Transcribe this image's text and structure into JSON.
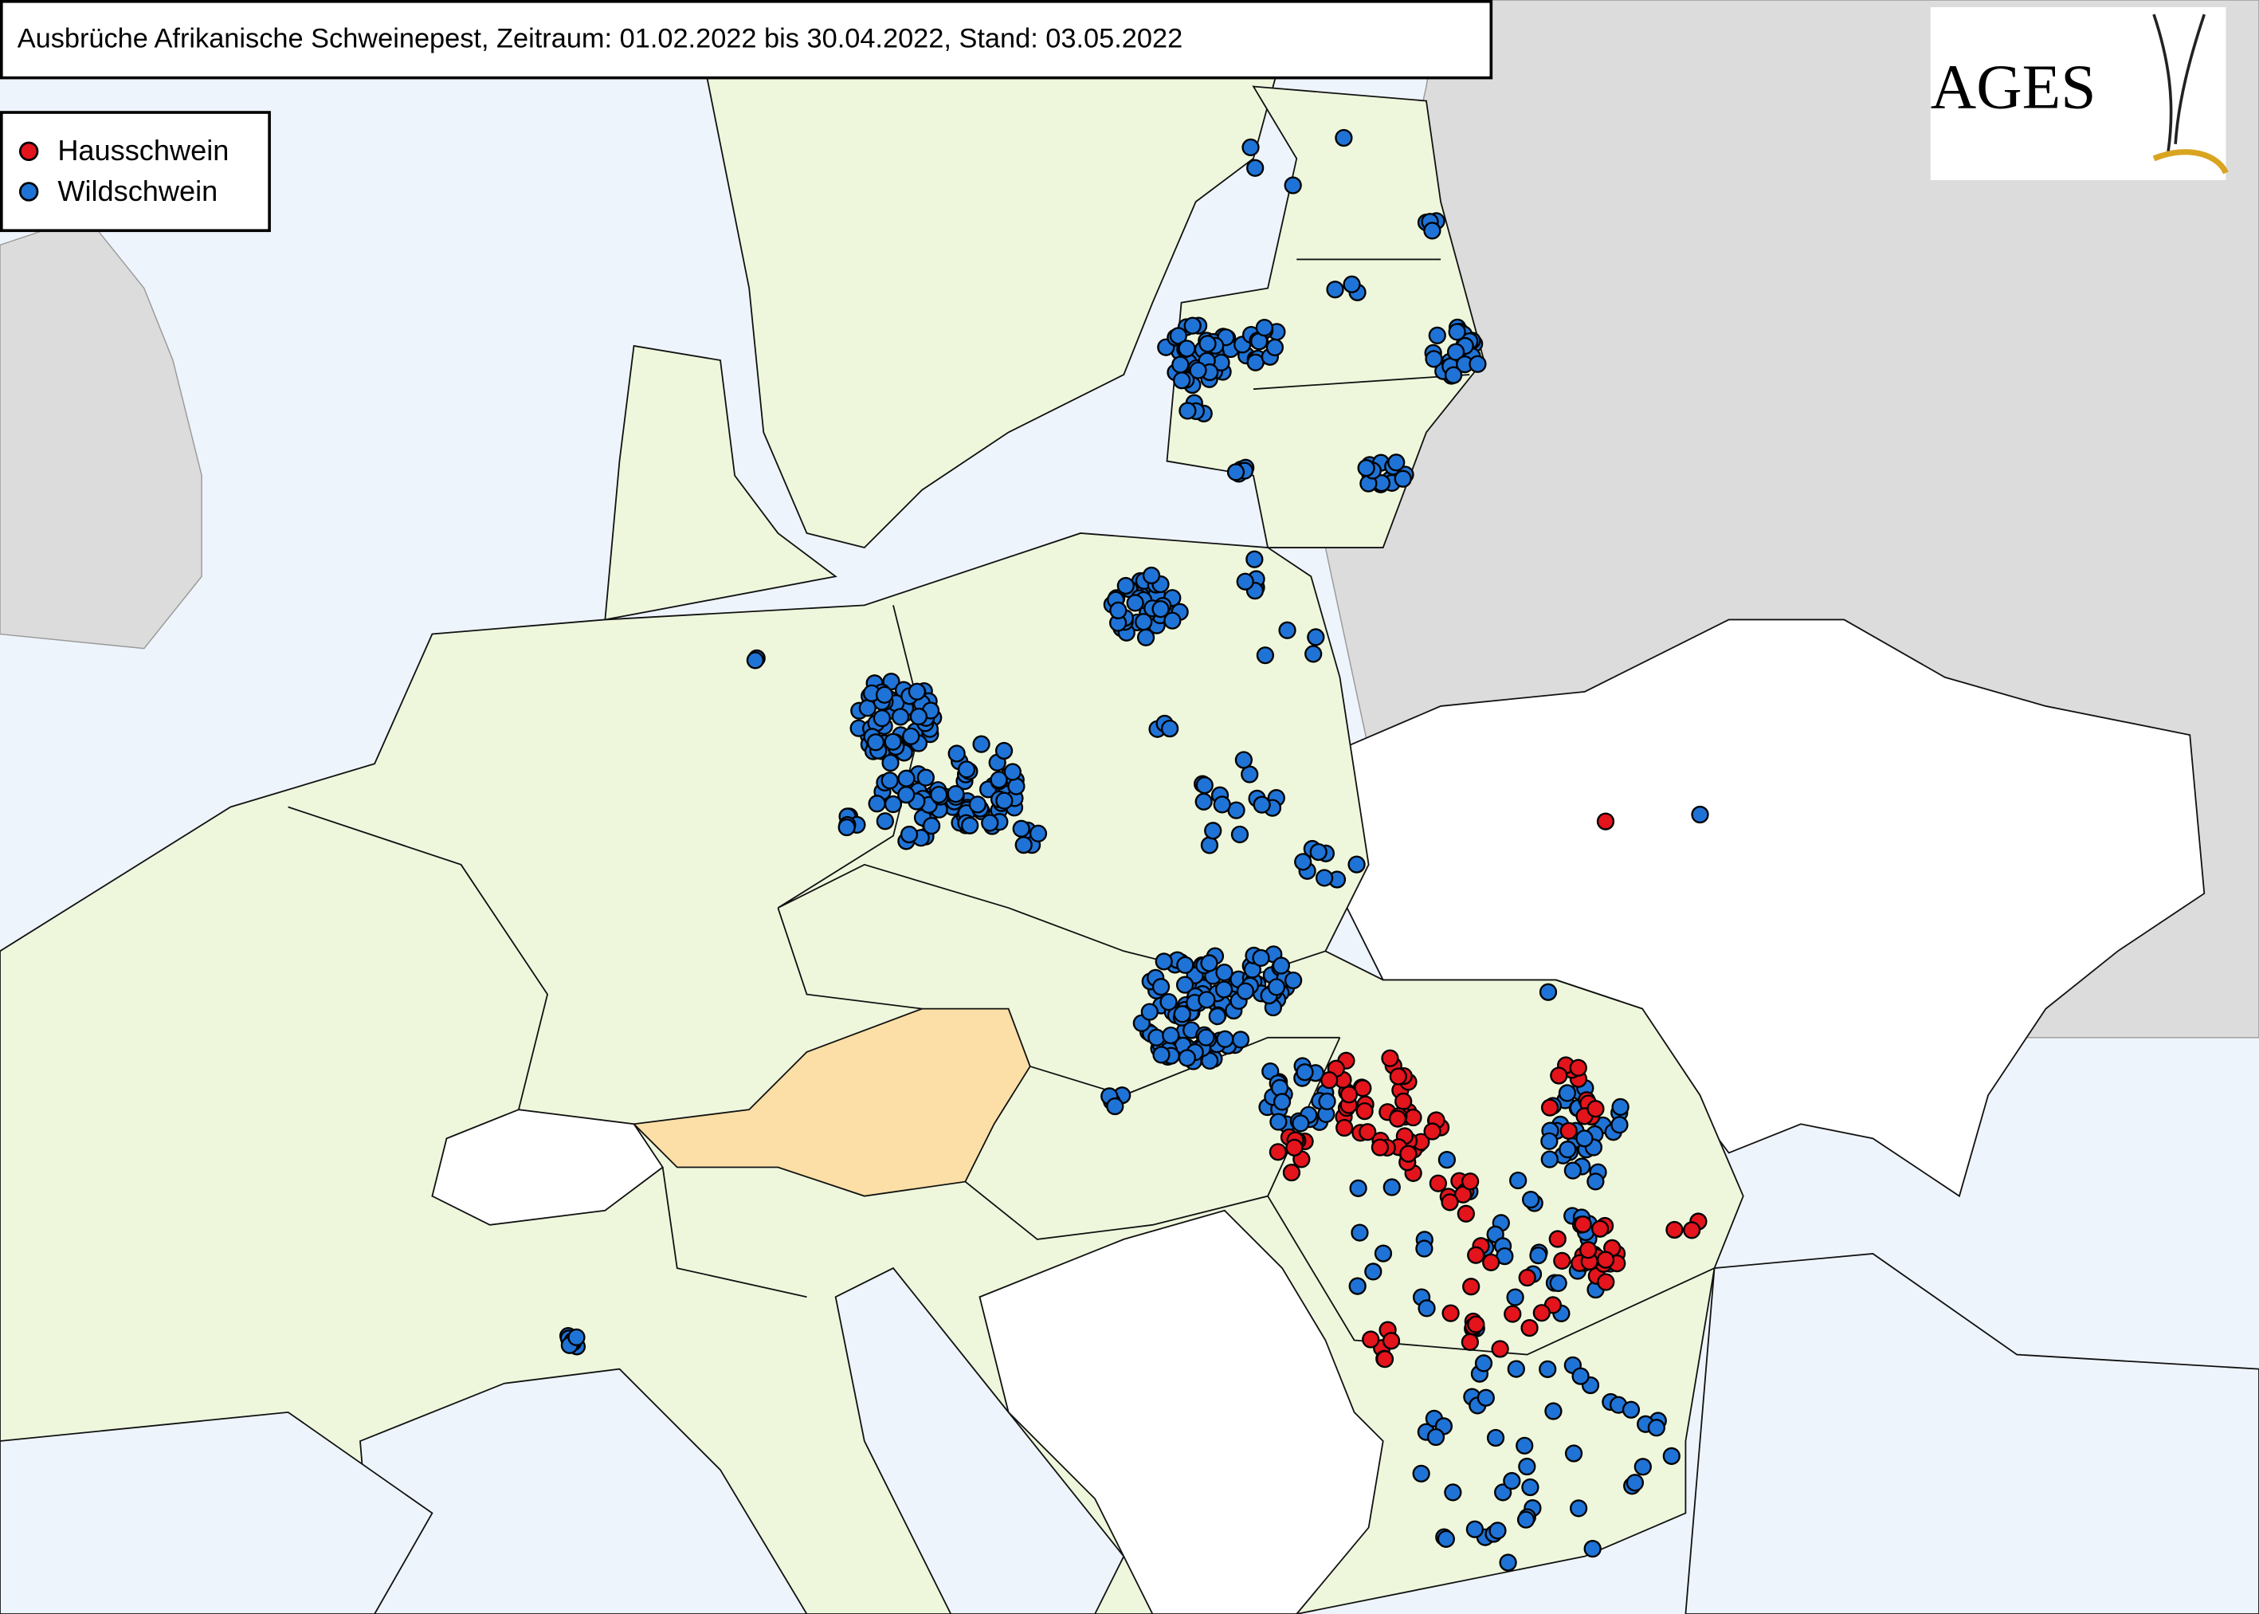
{
  "header": {
    "title": "Ausbrüche Afrikanische Schweinepest, Zeitraum: 01.02.2022 bis 30.04.2022, Stand: 03.05.2022"
  },
  "legend": {
    "entries": [
      {
        "label": "Hausschwein",
        "color": "#e3141c"
      },
      {
        "label": "Wildschwein",
        "color": "#1f73d6"
      }
    ]
  },
  "logo": {
    "text": "AGES"
  }
}
